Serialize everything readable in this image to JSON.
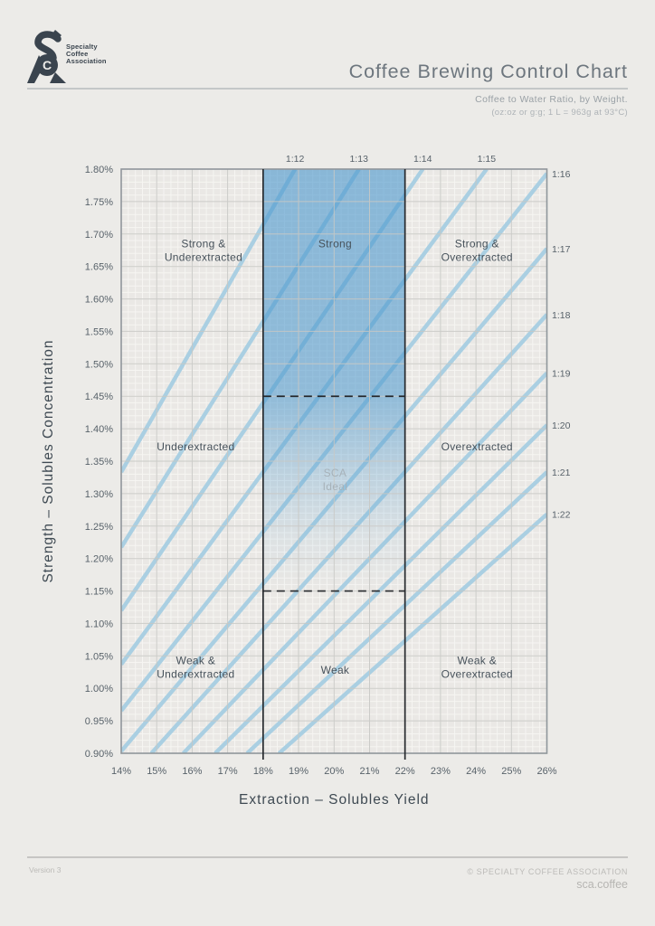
{
  "header": {
    "logo_lines": [
      "Specialty",
      "Coffee",
      "Association"
    ],
    "title": "Coffee Brewing Control Chart",
    "subtitle_line1": "Coffee to Water Ratio, by Weight.",
    "subtitle_line2": "(oz:oz or g:g; 1 L = 963g at 93°C)"
  },
  "chart_data": {
    "type": "line",
    "title": "Coffee Brewing Control Chart",
    "xlabel": "Extraction – Solubles Yield",
    "ylabel": "Strength – Solubles Concentration",
    "xlim": [
      14,
      26
    ],
    "ylim": [
      0.9,
      1.8
    ],
    "grid": {
      "x_minor_step": 0.2,
      "y_minor_step": 0.01,
      "x_major_step": 1,
      "y_major_step": 0.05
    },
    "x_ticks": [
      {
        "v": 14,
        "label": "14%"
      },
      {
        "v": 15,
        "label": "15%"
      },
      {
        "v": 16,
        "label": "16%"
      },
      {
        "v": 17,
        "label": "17%"
      },
      {
        "v": 18,
        "label": "18%"
      },
      {
        "v": 19,
        "label": "19%"
      },
      {
        "v": 20,
        "label": "20%"
      },
      {
        "v": 21,
        "label": "21%"
      },
      {
        "v": 22,
        "label": "22%"
      },
      {
        "v": 23,
        "label": "23%"
      },
      {
        "v": 24,
        "label": "24%"
      },
      {
        "v": 25,
        "label": "25%"
      },
      {
        "v": 26,
        "label": "26%"
      }
    ],
    "y_ticks": [
      {
        "v": 1.8,
        "label": "1.80%"
      },
      {
        "v": 1.75,
        "label": "1.75%"
      },
      {
        "v": 1.7,
        "label": "1.70%"
      },
      {
        "v": 1.65,
        "label": "1.65%"
      },
      {
        "v": 1.6,
        "label": "1.60%"
      },
      {
        "v": 1.55,
        "label": "1.55%"
      },
      {
        "v": 1.5,
        "label": "1.50%"
      },
      {
        "v": 1.45,
        "label": "1.45%"
      },
      {
        "v": 1.4,
        "label": "1.40%"
      },
      {
        "v": 1.35,
        "label": "1.35%"
      },
      {
        "v": 1.3,
        "label": "1.30%"
      },
      {
        "v": 1.25,
        "label": "1.25%"
      },
      {
        "v": 1.2,
        "label": "1.20%"
      },
      {
        "v": 1.15,
        "label": "1.15%"
      },
      {
        "v": 1.1,
        "label": "1.10%"
      },
      {
        "v": 1.05,
        "label": "1.05%"
      },
      {
        "v": 1.0,
        "label": "1.00%"
      },
      {
        "v": 0.95,
        "label": "0.95%"
      },
      {
        "v": 0.9,
        "label": "0.90%"
      }
    ],
    "ratio_lines": [
      {
        "label": "1:12",
        "side": "top",
        "points": [
          [
            14,
            1.3333
          ],
          [
            18.9,
            1.8
          ]
        ]
      },
      {
        "label": "1:13",
        "side": "top",
        "points": [
          [
            14,
            1.2174
          ],
          [
            20.7,
            1.8
          ]
        ]
      },
      {
        "label": "1:14",
        "side": "top",
        "points": [
          [
            14,
            1.12
          ],
          [
            22.5,
            1.8
          ]
        ]
      },
      {
        "label": "1:15",
        "side": "top",
        "points": [
          [
            14,
            1.037
          ],
          [
            24.3,
            1.8
          ]
        ]
      },
      {
        "label": "1:16",
        "side": "right",
        "points": [
          [
            14,
            0.9655
          ],
          [
            26,
            1.7931
          ]
        ]
      },
      {
        "label": "1:17",
        "side": "right",
        "points": [
          [
            14,
            0.9032
          ],
          [
            26,
            1.6774
          ]
        ]
      },
      {
        "label": "1:18",
        "side": "right",
        "points": [
          [
            14.85,
            0.9
          ],
          [
            26,
            1.5758
          ]
        ]
      },
      {
        "label": "1:19",
        "side": "right",
        "points": [
          [
            15.75,
            0.9
          ],
          [
            26,
            1.4857
          ]
        ]
      },
      {
        "label": "1:20",
        "side": "right",
        "points": [
          [
            16.65,
            0.9
          ],
          [
            26,
            1.4054
          ]
        ]
      },
      {
        "label": "1:21",
        "side": "right",
        "points": [
          [
            17.55,
            0.9
          ],
          [
            26,
            1.3333
          ]
        ]
      },
      {
        "label": "1:22",
        "side": "right",
        "points": [
          [
            18.45,
            0.9
          ],
          [
            26,
            1.2683
          ]
        ]
      }
    ],
    "ideal_region": {
      "extraction": [
        18,
        22
      ],
      "strength_dashed": [
        1.45,
        1.15
      ],
      "shade_top": 1.8,
      "shade_fade_bottom": 1.15
    },
    "regions": [
      {
        "lines": [
          "Strong &",
          "Underextracted"
        ],
        "x": 16.32,
        "y": 1.675,
        "muted": false
      },
      {
        "lines": [
          "Strong"
        ],
        "x": 20.03,
        "y": 1.685,
        "muted": false
      },
      {
        "lines": [
          "Strong &",
          "Overextracted"
        ],
        "x": 24.03,
        "y": 1.675,
        "muted": false
      },
      {
        "lines": [
          "Underextracted"
        ],
        "x": 16.1,
        "y": 1.372,
        "muted": false
      },
      {
        "lines": [
          "SCA",
          "Ideal"
        ],
        "x": 20.03,
        "y": 1.322,
        "muted": true
      },
      {
        "lines": [
          "Overextracted"
        ],
        "x": 24.03,
        "y": 1.372,
        "muted": false
      },
      {
        "lines": [
          "Weak &",
          "Underextracted"
        ],
        "x": 16.1,
        "y": 1.033,
        "muted": false
      },
      {
        "lines": [
          "Weak"
        ],
        "x": 20.03,
        "y": 1.028,
        "muted": false
      },
      {
        "lines": [
          "Weak &",
          "Overextracted"
        ],
        "x": 24.03,
        "y": 1.033,
        "muted": false
      }
    ],
    "colors": {
      "plot_bg": "#eae8e5",
      "grid_minor": "#f8f7f5",
      "grid_major": "#c7c6c3",
      "border": "#8f969b",
      "ratio_line": "#aacfe2",
      "band_blue": "#4896cd",
      "band_border": "#26292d",
      "ink": "#3e4952",
      "tick": "#58626a",
      "label": "#47525b",
      "muted_label": "#a7b2b9"
    }
  },
  "footer": {
    "version": "Version 3",
    "copyright": "© SPECIALTY COFFEE ASSOCIATION",
    "website": "sca.coffee"
  }
}
